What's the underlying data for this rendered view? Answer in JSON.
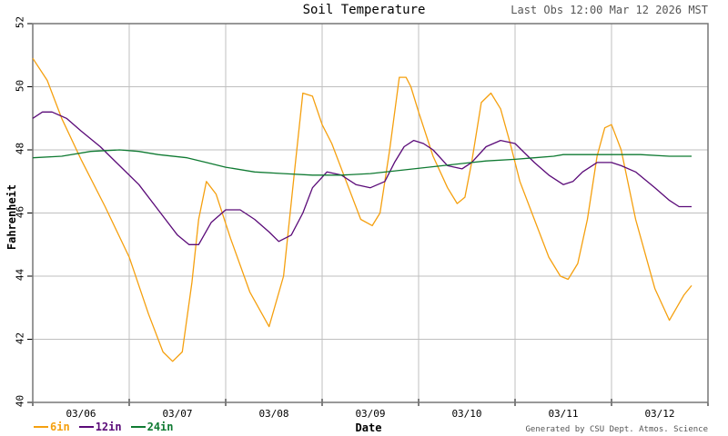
{
  "header": {
    "title": "Soil Temperature",
    "last_obs": "Last Obs 12:00 Mar 12 2026 MST"
  },
  "axes": {
    "ylabel": "Fahrenheit",
    "xlabel": "Date",
    "yticks": [
      "40",
      "42",
      "44",
      "46",
      "48",
      "50",
      "52"
    ],
    "xticks": [
      "03/06",
      "03/07",
      "03/08",
      "03/09",
      "03/10",
      "03/11",
      "03/12"
    ]
  },
  "legend": [
    {
      "label": "6in",
      "color": "#f5a00f"
    },
    {
      "label": "12in",
      "color": "#5a0a78"
    },
    {
      "label": "24in",
      "color": "#0f7a32"
    }
  ],
  "footer": {
    "credit": "Generated by CSU Dept. Atmos. Science"
  },
  "colors": {
    "grid": "#bfbfbf",
    "axis": "#777777",
    "six_in": "#f5a00f",
    "twelve_in": "#5a0a78",
    "twenty_four_in": "#0f7a32"
  },
  "chart_data": {
    "type": "line",
    "title": "Soil Temperature",
    "subtitle": "Last Obs 12:00 Mar 12 2026 MST",
    "xlabel": "Date",
    "ylabel": "Fahrenheit",
    "ylim": [
      40,
      52
    ],
    "xlim_days": [
      0,
      7
    ],
    "x_tick_labels": [
      "03/06",
      "03/07",
      "03/08",
      "03/09",
      "03/10",
      "03/11",
      "03/12"
    ],
    "x_tick_positions_days": [
      0.5,
      1.5,
      2.5,
      3.5,
      4.5,
      5.5,
      6.5
    ],
    "grid": true,
    "legend_position": "bottom-left",
    "series": [
      {
        "name": "6in",
        "color": "#f5a00f",
        "x_days": [
          0.0,
          0.15,
          0.3,
          0.5,
          0.75,
          1.0,
          1.2,
          1.35,
          1.45,
          1.55,
          1.65,
          1.72,
          1.8,
          1.9,
          2.05,
          2.25,
          2.45,
          2.6,
          2.72,
          2.8,
          2.9,
          3.0,
          3.1,
          3.25,
          3.4,
          3.52,
          3.6,
          3.7,
          3.8,
          3.87,
          3.92,
          4.0,
          4.15,
          4.3,
          4.4,
          4.48,
          4.55,
          4.65,
          4.75,
          4.85,
          4.95,
          5.05,
          5.2,
          5.35,
          5.47,
          5.55,
          5.65,
          5.75,
          5.85,
          5.93,
          6.0,
          6.1,
          6.25,
          6.45,
          6.6,
          6.75,
          6.83
        ],
        "values": [
          50.9,
          50.2,
          49.0,
          47.7,
          46.2,
          44.6,
          42.8,
          41.6,
          41.3,
          41.6,
          43.8,
          45.8,
          47.0,
          46.6,
          45.2,
          43.5,
          42.4,
          44.0,
          47.5,
          49.8,
          49.7,
          48.8,
          48.2,
          47.0,
          45.8,
          45.6,
          46.0,
          48.0,
          50.3,
          50.3,
          50.0,
          49.2,
          47.8,
          46.8,
          46.3,
          46.5,
          47.6,
          49.5,
          49.8,
          49.3,
          48.2,
          47.0,
          45.8,
          44.6,
          44.0,
          43.9,
          44.4,
          45.8,
          47.8,
          48.7,
          48.8,
          48.0,
          45.8,
          43.6,
          42.6,
          43.4,
          43.7
        ],
        "note": "values approximate, read from gridlines"
      },
      {
        "name": "12in",
        "color": "#5a0a78",
        "x_days": [
          0.0,
          0.1,
          0.2,
          0.35,
          0.5,
          0.7,
          0.9,
          1.1,
          1.3,
          1.5,
          1.62,
          1.72,
          1.85,
          2.0,
          2.15,
          2.3,
          2.45,
          2.55,
          2.68,
          2.8,
          2.9,
          3.05,
          3.2,
          3.35,
          3.5,
          3.65,
          3.75,
          3.85,
          3.95,
          4.05,
          4.15,
          4.3,
          4.45,
          4.55,
          4.7,
          4.85,
          5.0,
          5.1,
          5.2,
          5.35,
          5.5,
          5.6,
          5.7,
          5.85,
          6.0,
          6.1,
          6.25,
          6.45,
          6.6,
          6.7,
          6.83
        ],
        "values": [
          49.0,
          49.2,
          49.2,
          49.0,
          48.6,
          48.1,
          47.5,
          46.9,
          46.1,
          45.3,
          45.0,
          45.0,
          45.7,
          46.1,
          46.1,
          45.8,
          45.4,
          45.1,
          45.3,
          46.0,
          46.8,
          47.3,
          47.2,
          46.9,
          46.8,
          47.0,
          47.6,
          48.1,
          48.3,
          48.2,
          48.0,
          47.5,
          47.4,
          47.6,
          48.1,
          48.3,
          48.2,
          47.9,
          47.6,
          47.2,
          46.9,
          47.0,
          47.3,
          47.6,
          47.6,
          47.5,
          47.3,
          46.8,
          46.4,
          46.2,
          46.2
        ],
        "note": "values approximate, read from gridlines"
      },
      {
        "name": "24in",
        "color": "#0f7a32",
        "x_days": [
          0.0,
          0.3,
          0.6,
          0.9,
          1.1,
          1.3,
          1.6,
          1.8,
          2.0,
          2.3,
          2.6,
          2.9,
          3.2,
          3.5,
          3.8,
          4.1,
          4.4,
          4.7,
          5.0,
          5.2,
          5.4,
          5.5,
          5.7,
          6.0,
          6.3,
          6.6,
          6.83
        ],
        "values": [
          47.75,
          47.8,
          47.95,
          48.0,
          47.95,
          47.85,
          47.75,
          47.6,
          47.45,
          47.3,
          47.25,
          47.2,
          47.2,
          47.25,
          47.35,
          47.45,
          47.55,
          47.65,
          47.7,
          47.75,
          47.8,
          47.85,
          47.85,
          47.85,
          47.85,
          47.8,
          47.8
        ],
        "note": "values approximate, read from gridlines"
      }
    ]
  }
}
